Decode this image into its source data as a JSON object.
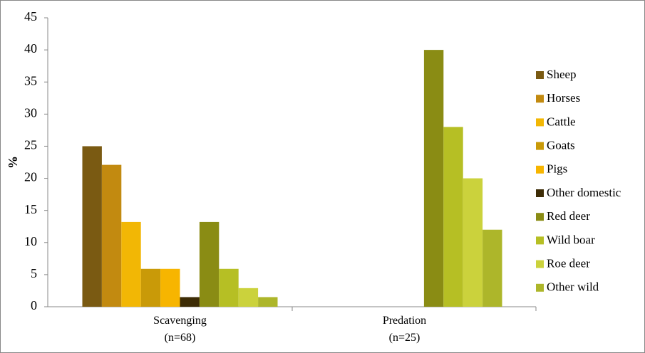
{
  "chart_data": {
    "type": "bar",
    "y_label": "%",
    "categories": [
      "Scavenging\n(n=68)",
      "Predation\n(n=25)"
    ],
    "series": [
      {
        "name": "Sheep",
        "color": "#7a5a12",
        "values": [
          25,
          0
        ]
      },
      {
        "name": "Horses",
        "color": "#c28a10",
        "values": [
          22.1,
          0
        ]
      },
      {
        "name": "Cattle",
        "color": "#f2b705",
        "values": [
          13.2,
          0
        ]
      },
      {
        "name": "Goats",
        "color": "#c99a08",
        "values": [
          5.9,
          0
        ]
      },
      {
        "name": "Pigs",
        "color": "#f7b500",
        "values": [
          5.9,
          0
        ]
      },
      {
        "name": "Other domestic",
        "color": "#3d2c06",
        "values": [
          1.5,
          0
        ]
      },
      {
        "name": "Red deer",
        "color": "#8a8c14",
        "values": [
          13.2,
          40
        ]
      },
      {
        "name": "Wild boar",
        "color": "#b6bf24",
        "values": [
          5.9,
          28
        ]
      },
      {
        "name": "Roe deer",
        "color": "#cbd23c",
        "values": [
          2.9,
          20
        ]
      },
      {
        "name": "Other wild",
        "color": "#adb62a",
        "values": [
          1.5,
          12
        ]
      }
    ],
    "ylim": [
      0,
      45
    ],
    "yticks": [
      0,
      5,
      10,
      15,
      20,
      25,
      30,
      35,
      40,
      45
    ],
    "grid": false,
    "legend": "right"
  }
}
